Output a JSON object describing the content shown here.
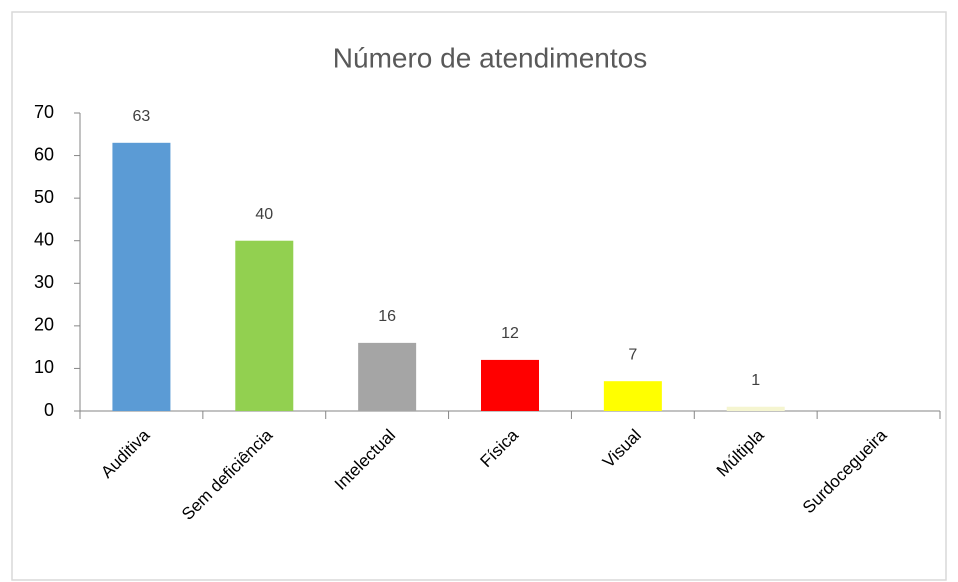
{
  "chart_data": {
    "type": "bar",
    "title": "Número de atendimentos",
    "categories": [
      "Auditiva",
      "Sem deficiência",
      "Intelectual",
      "Física",
      "Visual",
      "Múltipla",
      "Surdocegueira"
    ],
    "values": [
      63,
      40,
      16,
      12,
      7,
      1,
      null
    ],
    "colors": [
      "#5b9bd5",
      "#92d050",
      "#a5a5a5",
      "#ff0000",
      "#ffff00",
      "#f5f5d0",
      "#ffffff"
    ],
    "ylim": [
      0,
      70
    ],
    "yticks": [
      0,
      10,
      20,
      30,
      40,
      50,
      60,
      70
    ],
    "grid": false
  }
}
